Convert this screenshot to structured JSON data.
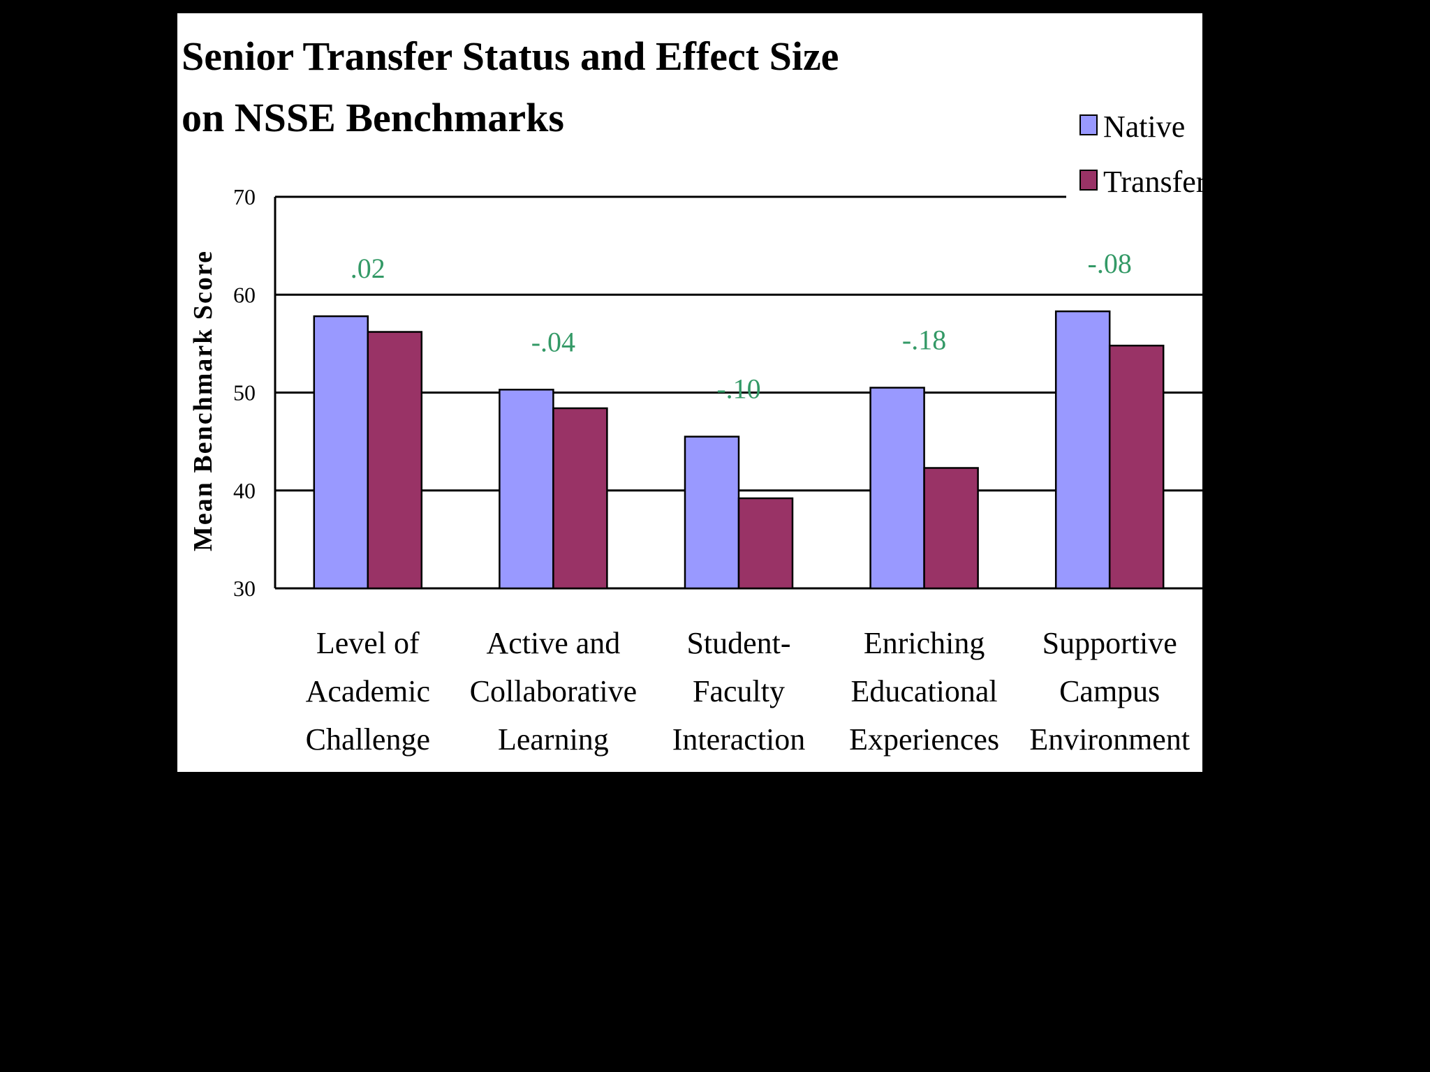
{
  "chart_data": {
    "type": "bar",
    "title_lines": [
      "Senior Transfer Status and Effect Size",
      "on NSSE Benchmarks"
    ],
    "xlabel": "",
    "ylabel": "Mean Benchmark Score",
    "ylim": [
      30,
      70
    ],
    "yticks": [
      70,
      60,
      50,
      40,
      30
    ],
    "grid": true,
    "legend_position": "top-right",
    "categories": [
      [
        "Level of",
        "Academic",
        "Challenge"
      ],
      [
        "Active and",
        "Collaborative",
        "Learning"
      ],
      [
        "Student-",
        "Faculty",
        "Interaction"
      ],
      [
        "Enriching",
        "Educational",
        "Experiences"
      ],
      [
        "Supportive",
        "Campus",
        "Environment"
      ]
    ],
    "series": [
      {
        "name": "Native",
        "color": "#9999FF",
        "values": [
          57.8,
          50.3,
          45.5,
          50.5,
          58.3
        ]
      },
      {
        "name": "Transfer",
        "color": "#993366",
        "values": [
          56.2,
          48.4,
          39.2,
          42.3,
          54.8
        ]
      }
    ],
    "effect_sizes": [
      ".02",
      "-.04",
      "-.10",
      "-.18",
      "-.08"
    ],
    "effect_color": "#339966"
  }
}
